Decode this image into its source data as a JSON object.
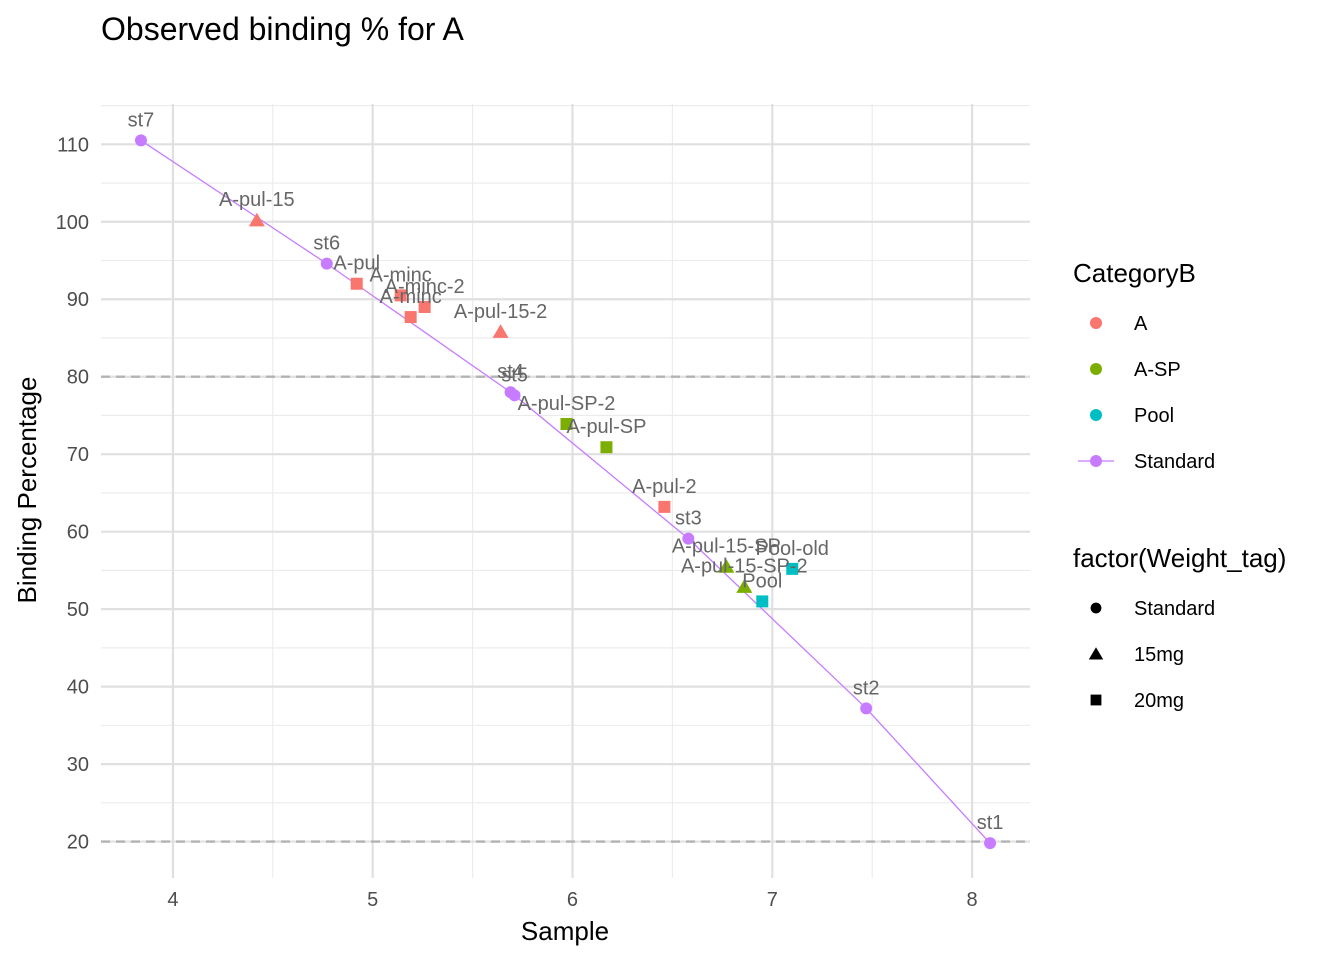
{
  "chart_data": {
    "type": "scatter",
    "title": "Observed binding % for A",
    "xlabel": "Sample",
    "ylabel": "Binding Percentage",
    "xlim": [
      3.64,
      8.29
    ],
    "ylim": [
      15.3,
      115.2
    ],
    "x_ticks": [
      4,
      5,
      6,
      7,
      8
    ],
    "y_ticks": [
      20,
      30,
      40,
      50,
      60,
      70,
      80,
      90,
      100,
      110
    ],
    "grid": true,
    "reference_lines": [
      20,
      80
    ],
    "colors": {
      "A": "#F8766D",
      "A-SP": "#7CAE00",
      "Pool": "#00BFC4",
      "Standard": "#C77CFF"
    },
    "points": [
      {
        "label": "st7",
        "x": 3.84,
        "y": 110.5,
        "category": "Standard",
        "weight": "Standard"
      },
      {
        "label": "A-pul-15",
        "x": 4.42,
        "y": 100.2,
        "category": "A",
        "weight": "15mg"
      },
      {
        "label": "st6",
        "x": 4.77,
        "y": 94.6,
        "category": "Standard",
        "weight": "Standard"
      },
      {
        "label": "A-pul",
        "x": 4.92,
        "y": 92.0,
        "category": "A",
        "weight": "20mg"
      },
      {
        "label": "A-minc",
        "x": 5.14,
        "y": 90.5,
        "category": "A",
        "weight": "20mg"
      },
      {
        "label": "A-minc-2",
        "x": 5.26,
        "y": 89.0,
        "category": "A",
        "weight": "20mg"
      },
      {
        "label": "A-minc",
        "x": 5.19,
        "y": 87.7,
        "category": "A",
        "weight": "20mg"
      },
      {
        "label": "A-pul-15-2",
        "x": 5.64,
        "y": 85.8,
        "category": "A",
        "weight": "15mg"
      },
      {
        "label": "st4",
        "x": 5.69,
        "y": 78.0,
        "category": "Standard",
        "weight": "Standard"
      },
      {
        "label": "st5",
        "x": 5.71,
        "y": 77.6,
        "category": "Standard",
        "weight": "Standard"
      },
      {
        "label": "A-pul-SP-2",
        "x": 5.97,
        "y": 73.9,
        "category": "A-SP",
        "weight": "20mg"
      },
      {
        "label": "A-pul-SP",
        "x": 6.17,
        "y": 70.9,
        "category": "A-SP",
        "weight": "20mg"
      },
      {
        "label": "A-pul-2",
        "x": 6.46,
        "y": 63.2,
        "category": "A",
        "weight": "20mg"
      },
      {
        "label": "st3",
        "x": 6.58,
        "y": 59.1,
        "category": "Standard",
        "weight": "Standard"
      },
      {
        "label": "A-pul-15-SP",
        "x": 6.77,
        "y": 55.5,
        "category": "A-SP",
        "weight": "15mg"
      },
      {
        "label": "Pool-old",
        "x": 7.1,
        "y": 55.2,
        "category": "Pool",
        "weight": "20mg"
      },
      {
        "label": "A-pul-15-SP-2",
        "x": 6.86,
        "y": 52.9,
        "category": "A-SP",
        "weight": "15mg"
      },
      {
        "label": "Pool",
        "x": 6.95,
        "y": 51.0,
        "category": "Pool",
        "weight": "20mg"
      },
      {
        "label": "st2",
        "x": 7.47,
        "y": 37.2,
        "category": "Standard",
        "weight": "Standard"
      },
      {
        "label": "st1",
        "x": 8.09,
        "y": 19.8,
        "category": "Standard",
        "weight": "Standard"
      }
    ],
    "legend": {
      "placement": "right",
      "color_title": "CategoryB",
      "color_items": [
        "A",
        "A-SP",
        "Pool",
        "Standard"
      ],
      "shape_title": "factor(Weight_tag)",
      "shape_items": [
        {
          "label": "Standard",
          "shape": "circle"
        },
        {
          "label": "15mg",
          "shape": "triangle"
        },
        {
          "label": "20mg",
          "shape": "square"
        }
      ]
    }
  }
}
